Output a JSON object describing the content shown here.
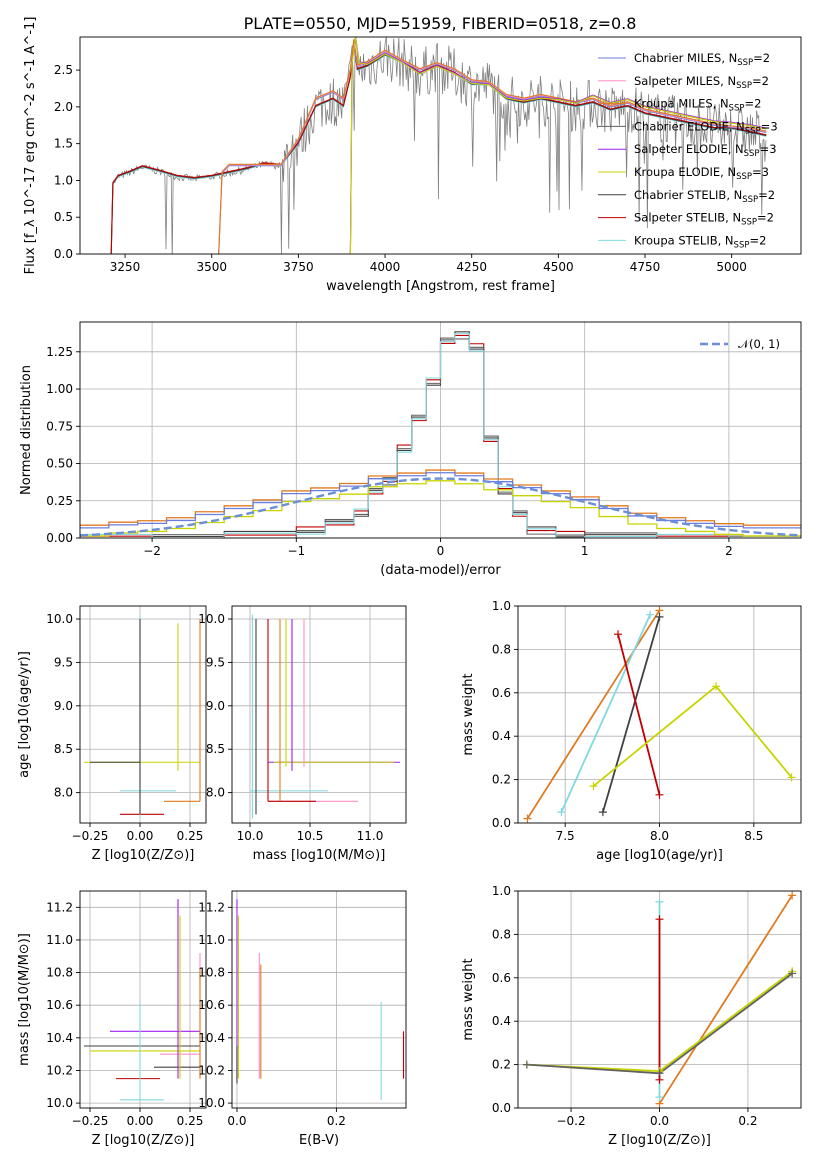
{
  "figure": {
    "title": "PLATE=0550, MJD=51959, FIBERID=0518, z=0.8"
  },
  "colors": {
    "chabrier_miles": "#6a7fdb",
    "salpeter_miles": "#ff8fc8",
    "kroupa_miles": "#e07a1f",
    "chabrier_elodie": "#606060",
    "salpeter_elodie": "#a020f0",
    "kroupa_elodie": "#c8d400",
    "chabrier_stelib": "#404040",
    "salpeter_stelib": "#c00000",
    "kroupa_stelib": "#80d8e0",
    "data": "#808080",
    "normal": "#6a8fd8"
  },
  "chart_data": [
    {
      "id": "spectrum",
      "type": "line",
      "title": "PLATE=0550, MJD=51959, FIBERID=0518, z=0.8",
      "xlabel": "wavelength [Angstrom, rest frame]",
      "ylabel": "Flux [f_λ 10^-17 erg cm^-2 s^-1 A^-1]",
      "xlim": [
        3120,
        5200
      ],
      "ylim": [
        0,
        2.95
      ],
      "xticks": [
        "3250",
        "3500",
        "3750",
        "4000",
        "4250",
        "4500",
        "4750",
        "5000"
      ],
      "yticks": [
        "0.0",
        "0.5",
        "1.0",
        "1.5",
        "2.0",
        "2.5"
      ],
      "grid": false,
      "legend_position": "top-right",
      "legend": [
        {
          "label": "Chabrier MILES, N",
          "sub": "SSP",
          "suffix": "=2",
          "color": "#6a7fdb"
        },
        {
          "label": "Salpeter MILES, N",
          "sub": "SSP",
          "suffix": "=2",
          "color": "#ff8fc8"
        },
        {
          "label": "Kroupa MILES, N",
          "sub": "SSP",
          "suffix": "=2",
          "color": "#e07a1f"
        },
        {
          "label": "Chabrier ELODIE, N",
          "sub": "SSP",
          "suffix": "=3",
          "color": "#606060"
        },
        {
          "label": "Salpeter ELODIE, N",
          "sub": "SSP",
          "suffix": "=3",
          "color": "#a020f0"
        },
        {
          "label": "Kroupa ELODIE, N",
          "sub": "SSP",
          "suffix": "=3",
          "color": "#c8d400"
        },
        {
          "label": "Chabrier STELIB, N",
          "sub": "SSP",
          "suffix": "=2",
          "color": "#404040"
        },
        {
          "label": "Salpeter STELIB, N",
          "sub": "SSP",
          "suffix": "=2",
          "color": "#c00000"
        },
        {
          "label": "Kroupa STELIB, N",
          "sub": "SSP",
          "suffix": "=2",
          "color": "#80d8e0"
        }
      ],
      "model_segments": [
        {
          "model": "stelib",
          "x": [
            3210,
            3215,
            3230,
            3260,
            3300,
            3350,
            3400,
            3450,
            3500,
            3550,
            3600,
            3650,
            3700,
            3750,
            3800,
            3850,
            3880,
            3900,
            3910,
            3920,
            3950,
            4000,
            4050,
            4100,
            4150,
            4200,
            4250,
            4300,
            4350,
            4400,
            4450,
            4500,
            4550,
            4600,
            4650,
            4700,
            4750,
            4800,
            4850,
            4900,
            4950,
            5000,
            5050,
            5100
          ],
          "y": [
            0,
            0.95,
            1.05,
            1.1,
            1.18,
            1.12,
            1.05,
            1.02,
            1.05,
            1.1,
            1.15,
            1.22,
            1.2,
            1.5,
            2.0,
            2.1,
            2.0,
            2.4,
            2.85,
            2.5,
            2.55,
            2.7,
            2.6,
            2.45,
            2.55,
            2.45,
            2.3,
            2.3,
            2.1,
            2.05,
            2.1,
            2.05,
            2.0,
            2.05,
            1.95,
            2.0,
            1.9,
            1.85,
            1.8,
            1.75,
            1.7,
            1.7,
            1.65,
            1.6
          ]
        },
        {
          "model": "miles",
          "x": [
            3520,
            3530,
            3550,
            3600,
            3650,
            3700,
            3750,
            3800,
            3850,
            3880,
            3900,
            3910,
            3920,
            3950,
            4000,
            4050,
            4100,
            4150,
            4200,
            4250,
            4300,
            4350,
            4400,
            4450,
            4500,
            4550,
            4600,
            4650,
            4700,
            4750,
            4800,
            4850,
            4900,
            4950,
            5000,
            5050,
            5100
          ],
          "y": [
            0,
            1.1,
            1.2,
            1.2,
            1.2,
            1.2,
            1.55,
            2.1,
            2.2,
            2.1,
            2.5,
            2.9,
            2.55,
            2.6,
            2.75,
            2.62,
            2.5,
            2.58,
            2.5,
            2.35,
            2.32,
            2.15,
            2.1,
            2.15,
            2.1,
            2.05,
            2.1,
            2.0,
            2.05,
            1.95,
            1.9,
            1.85,
            1.8,
            1.75,
            1.72,
            1.7,
            1.65
          ]
        },
        {
          "model": "elodie",
          "x": [
            3900,
            3905,
            3915,
            3925,
            3950,
            4000,
            4050,
            4100,
            4150,
            4200,
            4250,
            4300,
            4350,
            4400,
            4450,
            4500,
            4550,
            4600,
            4650,
            4700,
            4750,
            4800,
            4850,
            4900,
            4950,
            5000,
            5050,
            5100
          ],
          "y": [
            0,
            2.6,
            2.95,
            2.6,
            2.58,
            2.72,
            2.6,
            2.45,
            2.55,
            2.45,
            2.32,
            2.3,
            2.12,
            2.08,
            2.12,
            2.1,
            2.05,
            2.15,
            2.05,
            2.1,
            2.0,
            1.95,
            1.9,
            1.85,
            1.8,
            1.78,
            1.75,
            1.7
          ]
        }
      ]
    },
    {
      "id": "residuals",
      "type": "line",
      "xlabel": "(data-model)/error",
      "ylabel": "Normed distribution",
      "xlim": [
        -2.5,
        2.5
      ],
      "ylim": [
        0,
        1.45
      ],
      "xticks": [
        "−2",
        "−1",
        "0",
        "1",
        "2"
      ],
      "yticks": [
        "0.00",
        "0.25",
        "0.50",
        "0.75",
        "1.00",
        "1.25"
      ],
      "grid": true,
      "legend_position": "top-right",
      "legend": [
        {
          "label": "𝒩(0, 1)",
          "color": "#6a8fd8"
        }
      ],
      "bin_edges": [
        -2.5,
        -2.3,
        -2.1,
        -1.9,
        -1.7,
        -1.5,
        -1.3,
        -1.1,
        -0.9,
        -0.7,
        -0.5,
        -0.3,
        -0.1,
        0.1,
        0.3,
        0.5,
        0.7,
        0.9,
        1.1,
        1.3,
        1.5,
        1.7,
        1.9,
        2.1,
        2.3,
        2.5
      ],
      "narrow_bin_edges": [
        -2.5,
        -2.0,
        -1.5,
        -1.0,
        -0.8,
        -0.6,
        -0.5,
        -0.4,
        -0.3,
        -0.2,
        -0.1,
        0.0,
        0.1,
        0.2,
        0.3,
        0.4,
        0.5,
        0.6,
        0.8,
        1.0,
        1.5,
        2.0,
        2.5
      ],
      "narrow_values": [
        0.0,
        0.01,
        0.02,
        0.05,
        0.1,
        0.17,
        0.32,
        0.38,
        0.6,
        0.8,
        1.05,
        1.33,
        1.36,
        1.28,
        0.66,
        0.32,
        0.17,
        0.05,
        0.02,
        0.01,
        0.0,
        0.0
      ],
      "wide_values": [
        0.05,
        0.07,
        0.08,
        0.1,
        0.14,
        0.18,
        0.22,
        0.28,
        0.3,
        0.33,
        0.38,
        0.4,
        0.42,
        0.4,
        0.36,
        0.32,
        0.28,
        0.24,
        0.18,
        0.13,
        0.1,
        0.08,
        0.06,
        0.05,
        0.05
      ]
    },
    {
      "id": "age-vs-Z",
      "type": "scatter",
      "xlabel": "Z [log10(Z/Z⊙)]",
      "ylabel": "age  [log10(age/yr)]",
      "xlim": [
        -0.3,
        0.33
      ],
      "ylim": [
        7.65,
        10.15
      ],
      "xticks": [
        "−0.25",
        "0.00",
        "0.25"
      ],
      "yticks": [
        "8.0",
        "8.5",
        "9.0",
        "9.5",
        "10.0"
      ],
      "grid": true,
      "h_segments": [
        {
          "y": 8.35,
          "x": [
            -0.28,
            0.3
          ],
          "color": "#c8d400"
        },
        {
          "y": 8.35,
          "x": [
            -0.25,
            0.0
          ],
          "color": "#404040"
        },
        {
          "y": 8.02,
          "x": [
            -0.1,
            0.18
          ],
          "color": "#80d8e0"
        },
        {
          "y": 7.9,
          "x": [
            0.12,
            0.3
          ],
          "color": "#e07a1f"
        },
        {
          "y": 7.75,
          "x": [
            -0.1,
            0.12
          ],
          "color": "#c00000"
        }
      ],
      "v_segments": [
        {
          "x": 0.0,
          "y": [
            7.7,
            10.05
          ],
          "color": "#80d8e0"
        },
        {
          "x": 0.0,
          "y": [
            7.75,
            10.0
          ],
          "color": "#404040"
        },
        {
          "x": 0.19,
          "y": [
            8.25,
            9.95
          ],
          "color": "#c8d400"
        },
        {
          "x": 0.3,
          "y": [
            7.9,
            10.0
          ],
          "color": "#e07a1f"
        }
      ]
    },
    {
      "id": "age-vs-mass",
      "type": "scatter",
      "xlabel": "mass [log10(M/M⊙)]",
      "xlim": [
        9.85,
        11.3
      ],
      "ylim": [
        7.65,
        10.15
      ],
      "xticks": [
        "10.0",
        "10.5",
        "11.0"
      ],
      "yticks": [
        "8.0",
        "8.5",
        "9.0",
        "9.5",
        "10.0"
      ],
      "grid": true,
      "h_segments": [
        {
          "y": 8.35,
          "x": [
            10.15,
            11.25
          ],
          "color": "#a020f0"
        },
        {
          "y": 8.35,
          "x": [
            10.2,
            11.2
          ],
          "color": "#c8d400"
        },
        {
          "y": 8.02,
          "x": [
            10.0,
            10.65
          ],
          "color": "#80d8e0"
        },
        {
          "y": 7.9,
          "x": [
            10.15,
            10.9
          ],
          "color": "#ff8fc8"
        },
        {
          "y": 7.9,
          "x": [
            10.15,
            10.55
          ],
          "color": "#c00000"
        }
      ],
      "v_segments": [
        {
          "x": 10.02,
          "y": [
            7.7,
            10.05
          ],
          "color": "#80d8e0"
        },
        {
          "x": 10.05,
          "y": [
            7.75,
            10.0
          ],
          "color": "#404040"
        },
        {
          "x": 10.15,
          "y": [
            7.9,
            10.0
          ],
          "color": "#c00000"
        },
        {
          "x": 10.25,
          "y": [
            7.9,
            10.0
          ],
          "color": "#e07a1f"
        },
        {
          "x": 10.3,
          "y": [
            8.3,
            10.0
          ],
          "color": "#c8d400"
        },
        {
          "x": 10.35,
          "y": [
            8.25,
            10.0
          ],
          "color": "#a020f0"
        },
        {
          "x": 10.45,
          "y": [
            8.3,
            10.0
          ],
          "color": "#ff8fc8"
        }
      ]
    },
    {
      "id": "weight-vs-age",
      "type": "line",
      "xlabel": "age  [log10(age/yr)]",
      "ylabel": "mass weight",
      "xlim": [
        7.25,
        8.75
      ],
      "ylim": [
        0,
        1.0
      ],
      "xticks": [
        "7.5",
        "8.0",
        "8.5"
      ],
      "yticks": [
        "0.0",
        "0.2",
        "0.4",
        "0.6",
        "0.8",
        "1.0"
      ],
      "grid": true,
      "series": [
        {
          "x": [
            7.3,
            8.0
          ],
          "y": [
            0.02,
            0.98
          ],
          "color": "#e07a1f"
        },
        {
          "x": [
            7.48,
            7.95
          ],
          "y": [
            0.05,
            0.96
          ],
          "color": "#80d8e0"
        },
        {
          "x": [
            7.7,
            8.0
          ],
          "y": [
            0.05,
            0.95
          ],
          "color": "#404040"
        },
        {
          "x": [
            7.78,
            8.0
          ],
          "y": [
            0.87,
            0.13
          ],
          "color": "#c00000"
        },
        {
          "x": [
            7.65,
            8.3,
            8.7
          ],
          "y": [
            0.17,
            0.63,
            0.21
          ],
          "color": "#c8d400"
        }
      ]
    },
    {
      "id": "mass-vs-Z",
      "type": "scatter",
      "xlabel": "Z [log10(Z/Z⊙)]",
      "ylabel": "mass [log10(M/M⊙)]",
      "xlim": [
        -0.3,
        0.33
      ],
      "ylim": [
        9.97,
        11.3
      ],
      "xticks": [
        "−0.25",
        "0.00",
        "0.25"
      ],
      "yticks": [
        "10.0",
        "10.2",
        "10.4",
        "10.6",
        "10.8",
        "11.0",
        "11.2"
      ],
      "grid": true,
      "h_segments": [
        {
          "y": 10.44,
          "x": [
            -0.15,
            0.3
          ],
          "color": "#a020f0"
        },
        {
          "y": 10.35,
          "x": [
            -0.28,
            0.3
          ],
          "color": "#404040"
        },
        {
          "y": 10.32,
          "x": [
            -0.25,
            0.3
          ],
          "color": "#c8d400"
        },
        {
          "y": 10.3,
          "x": [
            0.1,
            0.3
          ],
          "color": "#ff8fc8"
        },
        {
          "y": 10.22,
          "x": [
            0.07,
            0.3
          ],
          "color": "#404040"
        },
        {
          "y": 10.15,
          "x": [
            -0.12,
            0.1
          ],
          "color": "#c00000"
        },
        {
          "y": 10.02,
          "x": [
            -0.1,
            0.12
          ],
          "color": "#80d8e0"
        }
      ],
      "v_segments": [
        {
          "x": 0.0,
          "y": [
            10.02,
            10.62
          ],
          "color": "#80d8e0"
        },
        {
          "x": 0.19,
          "y": [
            10.15,
            11.25
          ],
          "color": "#a020f0"
        },
        {
          "x": 0.2,
          "y": [
            10.15,
            11.15
          ],
          "color": "#c8d400"
        },
        {
          "x": 0.3,
          "y": [
            10.15,
            10.92
          ],
          "color": "#ff8fc8"
        },
        {
          "x": 0.3,
          "y": [
            10.15,
            10.82
          ],
          "color": "#e07a1f"
        }
      ]
    },
    {
      "id": "mass-vs-ebv",
      "type": "scatter",
      "xlabel": "E(B-V)",
      "xlim": [
        -0.01,
        0.34
      ],
      "ylim": [
        9.97,
        11.3
      ],
      "xticks": [
        "0.0",
        "0.2"
      ],
      "yticks": [
        "10.0",
        "10.2",
        "10.4",
        "10.6",
        "10.8",
        "11.0",
        "11.2"
      ],
      "grid": true,
      "v_segments": [
        {
          "x": 0.0,
          "y": [
            10.15,
            11.25
          ],
          "color": "#a020f0"
        },
        {
          "x": 0.003,
          "y": [
            10.15,
            11.15
          ],
          "color": "#c8d400"
        },
        {
          "x": 0.0,
          "y": [
            10.12,
            10.35
          ],
          "color": "#404040"
        },
        {
          "x": 0.045,
          "y": [
            10.15,
            10.92
          ],
          "color": "#ff8fc8"
        },
        {
          "x": 0.048,
          "y": [
            10.15,
            10.85
          ],
          "color": "#e07a1f"
        },
        {
          "x": 0.29,
          "y": [
            10.02,
            10.62
          ],
          "color": "#80d8e0"
        },
        {
          "x": 0.335,
          "y": [
            10.15,
            10.44
          ],
          "color": "#c00000"
        }
      ]
    },
    {
      "id": "weight-vs-Z",
      "type": "line",
      "xlabel": "Z [log10(Z/Z⊙)]",
      "ylabel": "mass weight",
      "xlim": [
        -0.32,
        0.32
      ],
      "ylim": [
        0,
        1.0
      ],
      "xticks": [
        "−0.2",
        "0.0",
        "0.2"
      ],
      "yticks": [
        "0.0",
        "0.2",
        "0.4",
        "0.6",
        "0.8",
        "1.0"
      ],
      "grid": true,
      "series": [
        {
          "x": [
            0.0,
            0.3
          ],
          "y": [
            0.02,
            0.98
          ],
          "color": "#e07a1f"
        },
        {
          "x": [
            -0.3,
            0.0,
            0.3
          ],
          "y": [
            0.2,
            0.17,
            0.63
          ],
          "color": "#c8d400"
        },
        {
          "x": [
            -0.3,
            0.0,
            0.3
          ],
          "y": [
            0.2,
            0.16,
            0.62
          ],
          "color": "#606060"
        },
        {
          "x": [
            0.0,
            0.0
          ],
          "y": [
            0.05,
            0.95
          ],
          "color": "#80d8e0"
        },
        {
          "x": [
            0.0,
            0.0
          ],
          "y": [
            0.13,
            0.87
          ],
          "color": "#c00000"
        }
      ]
    }
  ]
}
